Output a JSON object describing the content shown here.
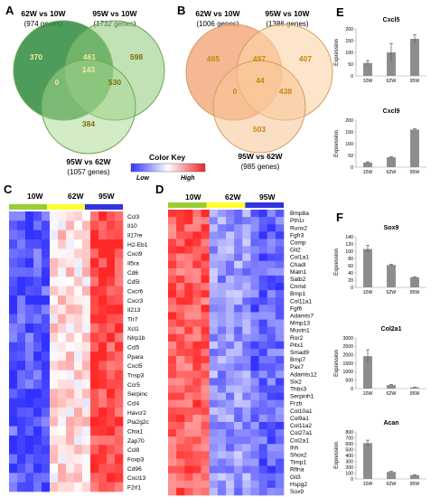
{
  "panel_labels": {
    "A": "A",
    "B": "B",
    "C": "C",
    "D": "D",
    "E": "E",
    "F": "F"
  },
  "venn_A": {
    "set1": {
      "title": "62W vs 10W",
      "count": "(974 genes)"
    },
    "set2": {
      "title": "95W vs 10W",
      "count": "(1732 genes)"
    },
    "set3": {
      "title": "95W vs 62W",
      "count": "(1057 genes)"
    },
    "regions": {
      "only1": "370",
      "only2": "598",
      "only3": "384",
      "r12": "461",
      "r13": "0",
      "r23": "530",
      "r123": "143"
    },
    "colors": {
      "set1": "#2e8b3e",
      "set2": "#8fc97a",
      "set3": "#a8d890",
      "stroke": "#6aa84f"
    }
  },
  "venn_B": {
    "set1": {
      "title": "62W vs 10W",
      "count": "(1006 genes)"
    },
    "set2": {
      "title": "95W vs 10W",
      "count": "(1386 genes)"
    },
    "set3": {
      "title": "95W vs 62W",
      "count": "(985 genes)"
    },
    "regions": {
      "only1": "465",
      "only2": "407",
      "only3": "503",
      "r12": "497",
      "r13": "0",
      "r23": "438",
      "r123": "44"
    },
    "colors": {
      "set1": "#f2a070",
      "set2": "#fbd3a8",
      "set3": "#f8c496",
      "stroke": "#d99a5b",
      "num": "#c8860a"
    }
  },
  "color_key": {
    "title": "Color Key",
    "low": "Low",
    "high": "High",
    "low_color": "#3333ff",
    "mid_color": "#ffffff",
    "high_color": "#ee2222"
  },
  "heatmap_C": {
    "columns": [
      "10W",
      "62W",
      "95W"
    ],
    "group_colors": [
      "#9acd32",
      "#ffff33",
      "#3333dd"
    ],
    "genes": [
      "Ccl3",
      "Il10",
      "Il17re",
      "H2-Eb1",
      "Cxcl9",
      "Il5ra",
      "Cd6",
      "Cd5l",
      "Cxcr6",
      "Cxcr3",
      "Il213",
      "Tlr7",
      "Xcl1",
      "Nlrp1b",
      "Ccl5",
      "Ppara",
      "Cxcl5",
      "Tnsp3",
      "Ccr5",
      "Serpinc",
      "Ccl4",
      "Havcr2",
      "Pla2g2c",
      "Chia1",
      "Zap70",
      "Ccl8",
      "Foxp3",
      "Cd96",
      "Cxcl13",
      "F2rl1"
    ]
  },
  "heatmap_D": {
    "columns": [
      "10W",
      "62W",
      "95W"
    ],
    "group_colors": [
      "#9acd32",
      "#ffff33",
      "#3333dd"
    ],
    "genes": [
      "Bmp8a",
      "Pth1r",
      "Runx2",
      "Fgfr3",
      "Comp",
      "Gli2",
      "Col1a1",
      "Chadl",
      "Matn1",
      "Satb2",
      "Cnmd",
      "Bmp1",
      "Col11a1",
      "Fgf6",
      "Adamts7",
      "Mmp13",
      "Mustn1",
      "Ror2",
      "Pitx1",
      "Smad9",
      "Bmp7",
      "Pax7",
      "Adamts12",
      "Six2",
      "Thbs3",
      "Serpinh1",
      "Frzb",
      "Col10a1",
      "Col9a1",
      "Col11a2",
      "Col27a1",
      "Col2a1",
      "Ihh",
      "Shox2",
      "Timp1",
      "Rflna",
      "Gli3",
      "Hspg2",
      "Sox9"
    ]
  },
  "y_axis_label": "Expression",
  "chart_data": [
    {
      "type": "bar",
      "panel": "E",
      "title": "Cxcl5",
      "ylabel": "Expression",
      "categories": [
        "10W",
        "62W",
        "95W"
      ],
      "values": [
        55,
        100,
        158
      ],
      "errors": [
        10,
        38,
        18
      ],
      "ylim": [
        0,
        200
      ],
      "yticks": [
        0,
        50,
        100,
        150,
        200
      ]
    },
    {
      "type": "bar",
      "panel": "E",
      "title": "Cxcl9",
      "ylabel": "Expression",
      "categories": [
        "10W",
        "62W",
        "95W"
      ],
      "values": [
        20,
        42,
        160
      ],
      "errors": [
        3,
        3,
        3
      ],
      "ylim": [
        0,
        200
      ],
      "yticks": [
        0,
        50,
        100,
        150,
        200
      ]
    },
    {
      "type": "bar",
      "panel": "F",
      "title": "Sox9",
      "ylabel": "Expression",
      "categories": [
        "10W",
        "62W",
        "95W"
      ],
      "values": [
        106,
        62,
        28
      ],
      "errors": [
        10,
        2,
        1
      ],
      "ylim": [
        0,
        140
      ],
      "yticks": [
        0,
        20,
        40,
        60,
        80,
        100,
        120,
        140
      ]
    },
    {
      "type": "bar",
      "panel": "F",
      "title": "Col2a1",
      "ylabel": "Expression",
      "categories": [
        "10W",
        "62W",
        "95W"
      ],
      "values": [
        1920,
        210,
        70
      ],
      "errors": [
        380,
        30,
        10
      ],
      "ylim": [
        0,
        3000
      ],
      "yticks": [
        0,
        500,
        1000,
        1500,
        2000,
        2500,
        3000
      ]
    },
    {
      "type": "bar",
      "panel": "F",
      "title": "Acan",
      "ylabel": "Expression",
      "categories": [
        "10W",
        "62W",
        "95W"
      ],
      "values": [
        610,
        120,
        65
      ],
      "errors": [
        50,
        8,
        5
      ],
      "ylim": [
        0,
        800
      ],
      "yticks": [
        0,
        100,
        200,
        300,
        400,
        500,
        600,
        700,
        800
      ]
    }
  ]
}
